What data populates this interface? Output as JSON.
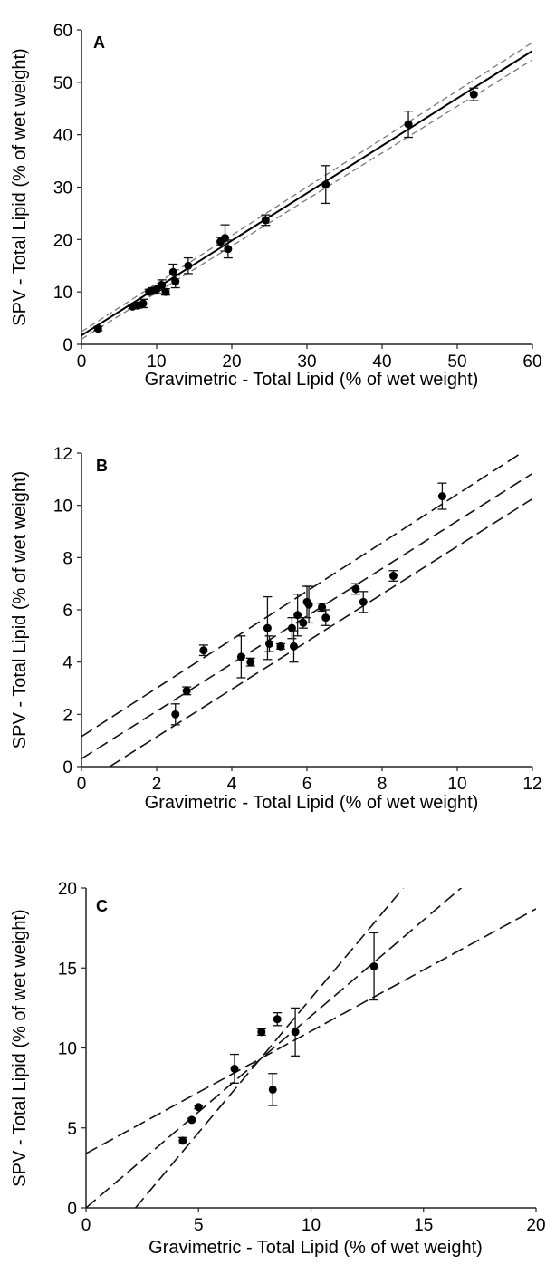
{
  "chart_data": [
    {
      "panel": "A",
      "type": "scatter",
      "xlabel": "Gravimetric - Total Lipid (% of wet weight)",
      "ylabel": "SPV - Total Lipid (% of wet weight)",
      "xlim": [
        0,
        60
      ],
      "ylim": [
        0,
        60
      ],
      "xticks": [
        "0",
        "10",
        "20",
        "30",
        "40",
        "50",
        "60"
      ],
      "yticks": [
        "0",
        "10",
        "20",
        "30",
        "40",
        "50",
        "60"
      ],
      "grid": false,
      "points": [
        {
          "x": 2.2,
          "y": 3.0,
          "err": 0.4
        },
        {
          "x": 6.8,
          "y": 7.2,
          "err": 0.4
        },
        {
          "x": 7.5,
          "y": 7.4,
          "err": 0.5
        },
        {
          "x": 8.2,
          "y": 7.8,
          "err": 0.8
        },
        {
          "x": 9.0,
          "y": 10.0,
          "err": 0.5
        },
        {
          "x": 9.5,
          "y": 10.2,
          "err": 0.6
        },
        {
          "x": 10.0,
          "y": 10.5,
          "err": 0.8
        },
        {
          "x": 10.7,
          "y": 11.3,
          "err": 1.0
        },
        {
          "x": 11.2,
          "y": 10.0,
          "err": 0.6
        },
        {
          "x": 12.2,
          "y": 13.8,
          "err": 1.5
        },
        {
          "x": 12.5,
          "y": 12.0,
          "err": 1.2
        },
        {
          "x": 14.2,
          "y": 15.0,
          "err": 1.5
        },
        {
          "x": 18.5,
          "y": 19.6,
          "err": 0.8
        },
        {
          "x": 19.1,
          "y": 20.3,
          "err": 2.5
        },
        {
          "x": 19.5,
          "y": 18.2,
          "err": 1.7
        },
        {
          "x": 24.5,
          "y": 23.7,
          "err": 1.0
        },
        {
          "x": 32.5,
          "y": 30.5,
          "err": 3.6
        },
        {
          "x": 43.5,
          "y": 42.0,
          "err": 2.5
        },
        {
          "x": 52.2,
          "y": 47.7,
          "err": 1.2
        }
      ],
      "fit": {
        "intercept": 1.7,
        "slope": 0.905
      },
      "ci_upper": [
        [
          0,
          2.4
        ],
        [
          60,
          57.6
        ]
      ],
      "ci_lower": [
        [
          0,
          1.0
        ],
        [
          60,
          54.3
        ]
      ]
    },
    {
      "panel": "B",
      "type": "scatter",
      "xlabel": "Gravimetric - Total Lipid (% of wet weight)",
      "ylabel": "SPV - Total Lipid (% of wet weight)",
      "xlim": [
        0,
        12
      ],
      "ylim": [
        0,
        12
      ],
      "xticks": [
        "0",
        "2",
        "4",
        "6",
        "8",
        "10",
        "12"
      ],
      "yticks": [
        "0",
        "2",
        "4",
        "6",
        "8",
        "10",
        "12"
      ],
      "grid": false,
      "points": [
        {
          "x": 2.5,
          "y": 2.0,
          "err": 0.4
        },
        {
          "x": 2.8,
          "y": 2.9,
          "err": 0.15
        },
        {
          "x": 3.25,
          "y": 4.45,
          "err": 0.2
        },
        {
          "x": 4.25,
          "y": 4.2,
          "err": 0.8
        },
        {
          "x": 4.5,
          "y": 4.0,
          "err": 0.15
        },
        {
          "x": 4.95,
          "y": 5.3,
          "err": 1.2
        },
        {
          "x": 5.0,
          "y": 4.7,
          "err": 0.3
        },
        {
          "x": 5.3,
          "y": 4.6,
          "err": 0.1
        },
        {
          "x": 5.6,
          "y": 5.3,
          "err": 0.4
        },
        {
          "x": 5.65,
          "y": 4.6,
          "err": 0.6
        },
        {
          "x": 5.75,
          "y": 5.8,
          "err": 0.8
        },
        {
          "x": 5.9,
          "y": 5.5,
          "err": 0.2
        },
        {
          "x": 6.0,
          "y": 6.3,
          "err": 0.6
        },
        {
          "x": 6.05,
          "y": 6.2,
          "err": 0.7
        },
        {
          "x": 6.4,
          "y": 6.1,
          "err": 0.15
        },
        {
          "x": 6.5,
          "y": 5.7,
          "err": 0.3
        },
        {
          "x": 7.3,
          "y": 6.8,
          "err": 0.2
        },
        {
          "x": 7.5,
          "y": 6.3,
          "err": 0.4
        },
        {
          "x": 8.3,
          "y": 7.3,
          "err": 0.2
        },
        {
          "x": 9.6,
          "y": 10.35,
          "err": 0.5
        }
      ],
      "fit": {
        "intercept": 0.3,
        "slope": 0.91
      },
      "ci_upper": [
        [
          0,
          1.15
        ],
        [
          11.7,
          12.0
        ]
      ],
      "ci_lower": [
        [
          0.75,
          0
        ],
        [
          12,
          10.25
        ]
      ]
    },
    {
      "panel": "C",
      "type": "scatter",
      "xlabel": "Gravimetric - Total Lipid (% of wet weight)",
      "ylabel": "SPV - Total Lipid (% of wet weight)",
      "xlim": [
        0,
        20
      ],
      "ylim": [
        0,
        20
      ],
      "xticks": [
        "0",
        "5",
        "10",
        "15",
        "20"
      ],
      "yticks": [
        "0",
        "5",
        "10",
        "15",
        "20"
      ],
      "grid": false,
      "points": [
        {
          "x": 4.3,
          "y": 4.2,
          "err": 0.2
        },
        {
          "x": 4.7,
          "y": 5.5,
          "err": 0.1
        },
        {
          "x": 5.0,
          "y": 6.3,
          "err": 0.1
        },
        {
          "x": 6.6,
          "y": 8.7,
          "err": 0.9
        },
        {
          "x": 7.8,
          "y": 11.0,
          "err": 0.2
        },
        {
          "x": 8.3,
          "y": 7.4,
          "err": 1.0
        },
        {
          "x": 8.5,
          "y": 11.8,
          "err": 0.4
        },
        {
          "x": 9.3,
          "y": 11.0,
          "err": 1.5
        },
        {
          "x": 12.8,
          "y": 15.1,
          "err": 2.1
        }
      ],
      "fit": {
        "intercept": 0.0,
        "slope": 1.2
      },
      "ci_upper": [
        [
          0,
          3.4
        ],
        [
          20,
          18.7
        ]
      ],
      "ci_lower": [
        [
          2.2,
          0
        ],
        [
          14.1,
          20
        ]
      ]
    }
  ]
}
